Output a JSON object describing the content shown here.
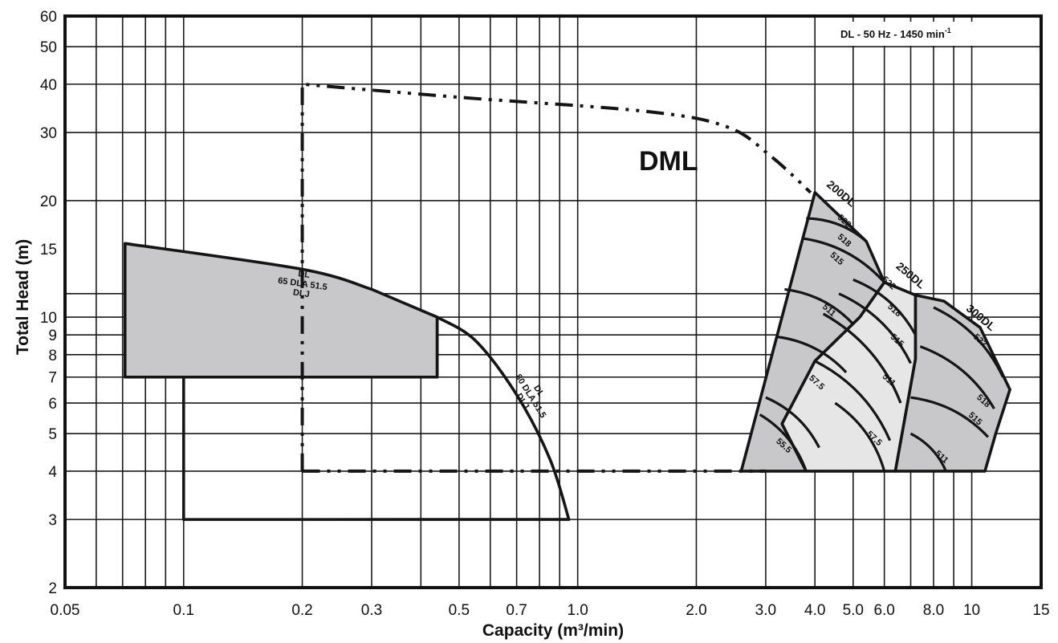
{
  "chart_data": {
    "type": "area",
    "title": "",
    "xlabel": "Capacity  (m³/min)",
    "ylabel": "Total Head  (m)",
    "x_scale": "log",
    "y_scale": "log",
    "xlim": [
      0.05,
      15
    ],
    "ylim": [
      2,
      60
    ],
    "grid": true,
    "info_box": {
      "text": "DL - 50 Hz - 1450 min",
      "superscript": "-1"
    },
    "x_ticks": [
      {
        "value": 0.05,
        "label": "0.05"
      },
      {
        "value": 0.1,
        "label": "0.1"
      },
      {
        "value": 0.2,
        "label": "0.2"
      },
      {
        "value": 0.3,
        "label": "0.3"
      },
      {
        "value": 0.5,
        "label": "0.5"
      },
      {
        "value": 0.7,
        "label": "0.7"
      },
      {
        "value": 1.0,
        "label": "1.0"
      },
      {
        "value": 2.0,
        "label": "2.0"
      },
      {
        "value": 3.0,
        "label": "3.0"
      },
      {
        "value": 4.0,
        "label": "4.0"
      },
      {
        "value": 5.0,
        "label": "5.0"
      },
      {
        "value": 6.0,
        "label": "6.0"
      },
      {
        "value": 8.0,
        "label": "8.0"
      },
      {
        "value": 10,
        "label": "10"
      },
      {
        "value": 15,
        "label": "15"
      }
    ],
    "x_grid": [
      0.06,
      0.07,
      0.08,
      0.09,
      0.1,
      0.2,
      0.3,
      0.4,
      0.5,
      0.6,
      0.7,
      0.8,
      0.9,
      1.0,
      2.0,
      3.0,
      4.0,
      5.0,
      6.0,
      7.0,
      8.0,
      9.0,
      10
    ],
    "y_ticks": [
      {
        "value": 2,
        "label": "2"
      },
      {
        "value": 3,
        "label": "3"
      },
      {
        "value": 4,
        "label": "4"
      },
      {
        "value": 5,
        "label": "5"
      },
      {
        "value": 6,
        "label": "6"
      },
      {
        "value": 7,
        "label": "7"
      },
      {
        "value": 8,
        "label": "8"
      },
      {
        "value": 9,
        "label": "9"
      },
      {
        "value": 10,
        "label": "10"
      },
      {
        "value": 15,
        "label": "15"
      },
      {
        "value": 20,
        "label": "20"
      },
      {
        "value": 30,
        "label": "30"
      },
      {
        "value": 40,
        "label": "40"
      },
      {
        "value": 50,
        "label": "50"
      },
      {
        "value": 60,
        "label": "60"
      }
    ],
    "y_grid": [
      3,
      4,
      5,
      6,
      7,
      8,
      9,
      10,
      11.5,
      20,
      30,
      40,
      50
    ],
    "ranges": [
      {
        "name": "65 DLA 51.5",
        "label_lines": [
          "DL",
          "65 DLA 51.5",
          "DLJ"
        ],
        "fill": "#c8c8ca",
        "boundary": [
          [
            0.071,
            7
          ],
          [
            0.071,
            15.5
          ],
          [
            0.2,
            13.3
          ],
          [
            0.3,
            11.8
          ],
          [
            0.44,
            10
          ],
          [
            0.44,
            7
          ]
        ],
        "label_at": [
          0.2,
          12.0
        ]
      },
      {
        "name": "80 DLA 51.5",
        "label_lines": [
          "DL",
          "80 DLA 51.5",
          "DLJ"
        ],
        "fill": "none",
        "boundary": [
          [
            0.1,
            3
          ],
          [
            0.1,
            7
          ],
          [
            0.44,
            7
          ],
          [
            0.44,
            10
          ],
          [
            0.55,
            8.7
          ],
          [
            0.7,
            6.3
          ],
          [
            0.85,
            4.3
          ],
          [
            0.95,
            3
          ]
        ],
        "label_at": [
          0.75,
          6.2
        ]
      },
      {
        "name": "DML",
        "label_lines": [
          "DML"
        ],
        "line_style": "dash-dot-dot",
        "fill": "none",
        "boundary": [
          [
            0.2,
            4
          ],
          [
            0.2,
            40
          ],
          [
            0.5,
            37
          ],
          [
            1.5,
            34
          ],
          [
            2.4,
            31
          ],
          [
            3.1,
            26
          ],
          [
            3.9,
            21
          ],
          [
            3.0,
            4
          ]
        ],
        "label_at": [
          1.7,
          24
        ]
      },
      {
        "name": "200DL",
        "label_lines": [
          "200DL"
        ],
        "fill": "#c8c8ca",
        "boundary": [
          [
            2.6,
            4
          ],
          [
            4.0,
            21
          ],
          [
            5.4,
            15.7
          ],
          [
            6.0,
            12.3
          ],
          [
            5.2,
            10
          ],
          [
            4.0,
            7.7
          ],
          [
            3.3,
            5.3
          ],
          [
            3.8,
            4
          ]
        ],
        "label_at": [
          4.6,
          20.5
        ]
      },
      {
        "name": "250DL",
        "label_lines": [
          "250DL"
        ],
        "fill": "#e6e6e7",
        "boundary": [
          [
            3.8,
            4
          ],
          [
            3.3,
            5.3
          ],
          [
            4.0,
            7.7
          ],
          [
            5.2,
            10
          ],
          [
            6.0,
            12.3
          ],
          [
            7.2,
            11.4
          ],
          [
            7.2,
            7.8
          ],
          [
            6.4,
            4
          ]
        ],
        "label_at": [
          6.9,
          12.6
        ]
      },
      {
        "name": "300DL",
        "label_lines": [
          "300DL"
        ],
        "fill": "#c8c8ca",
        "boundary": [
          [
            6.4,
            4
          ],
          [
            7.2,
            7.8
          ],
          [
            7.2,
            11.4
          ],
          [
            8.5,
            11.0
          ],
          [
            10.5,
            9.4
          ],
          [
            12.5,
            6.5
          ],
          [
            11.5,
            5
          ],
          [
            10.8,
            4
          ]
        ],
        "label_at": [
          10.4,
          9.8
        ]
      }
    ],
    "model_labels": [
      {
        "text": "522",
        "x": 4.7,
        "y": 17.5,
        "range": "200DL"
      },
      {
        "text": "518",
        "x": 4.7,
        "y": 15.6,
        "range": "200DL"
      },
      {
        "text": "515",
        "x": 4.5,
        "y": 14.0,
        "range": "200DL"
      },
      {
        "text": "511",
        "x": 4.3,
        "y": 10.3,
        "range": "200DL"
      },
      {
        "text": "57.5",
        "x": 4.0,
        "y": 6.7,
        "range": "200DL"
      },
      {
        "text": "55.5",
        "x": 3.3,
        "y": 4.6,
        "range": "200DL"
      },
      {
        "text": "522",
        "x": 6.1,
        "y": 12.1,
        "range": "250DL"
      },
      {
        "text": "518",
        "x": 6.3,
        "y": 10.3,
        "range": "250DL"
      },
      {
        "text": "515",
        "x": 6.4,
        "y": 8.6,
        "range": "250DL"
      },
      {
        "text": "511",
        "x": 6.1,
        "y": 6.8,
        "range": "250DL"
      },
      {
        "text": "57.5",
        "x": 5.6,
        "y": 4.8,
        "range": "250DL"
      },
      {
        "text": "522",
        "x": 10.4,
        "y": 8.6,
        "range": "300DL"
      },
      {
        "text": "518",
        "x": 10.6,
        "y": 6.0,
        "range": "300DL"
      },
      {
        "text": "515",
        "x": 10.1,
        "y": 5.4,
        "range": "300DL"
      },
      {
        "text": "511",
        "x": 8.3,
        "y": 4.3,
        "range": "300DL"
      }
    ]
  }
}
